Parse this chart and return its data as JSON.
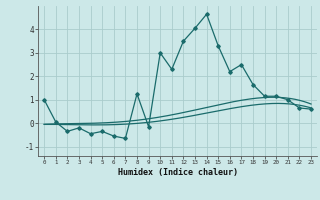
{
  "title": "",
  "xlabel": "Humidex (Indice chaleur)",
  "background_color": "#cce8e8",
  "grid_color": "#aacccc",
  "line_color": "#1a6b6b",
  "x_jagged": [
    0,
    1,
    2,
    3,
    4,
    5,
    6,
    7,
    8,
    9,
    10,
    11,
    12,
    13,
    14,
    15,
    16,
    17,
    18,
    19,
    20,
    21,
    22,
    23
  ],
  "y_jagged": [
    1.0,
    0.05,
    -0.35,
    -0.2,
    -0.45,
    -0.35,
    -0.55,
    -0.65,
    1.25,
    -0.15,
    3.0,
    2.3,
    3.5,
    4.05,
    4.65,
    3.3,
    2.2,
    2.5,
    1.65,
    1.15,
    1.15,
    1.0,
    0.65,
    0.6
  ],
  "x_smooth1_ctrl": [
    0,
    4,
    9,
    14,
    20,
    23
  ],
  "y_smooth1_ctrl": [
    -0.05,
    0.0,
    0.18,
    0.68,
    1.1,
    0.82
  ],
  "x_smooth2_ctrl": [
    0,
    4,
    9,
    14,
    20,
    23
  ],
  "y_smooth2_ctrl": [
    -0.05,
    -0.08,
    0.05,
    0.42,
    0.85,
    0.65
  ],
  "xlim": [
    -0.5,
    23.5
  ],
  "ylim": [
    -1.4,
    5.0
  ],
  "yticks": [
    -1,
    0,
    1,
    2,
    3,
    4
  ],
  "xticks": [
    0,
    1,
    2,
    3,
    4,
    5,
    6,
    7,
    8,
    9,
    10,
    11,
    12,
    13,
    14,
    15,
    16,
    17,
    18,
    19,
    20,
    21,
    22,
    23
  ]
}
